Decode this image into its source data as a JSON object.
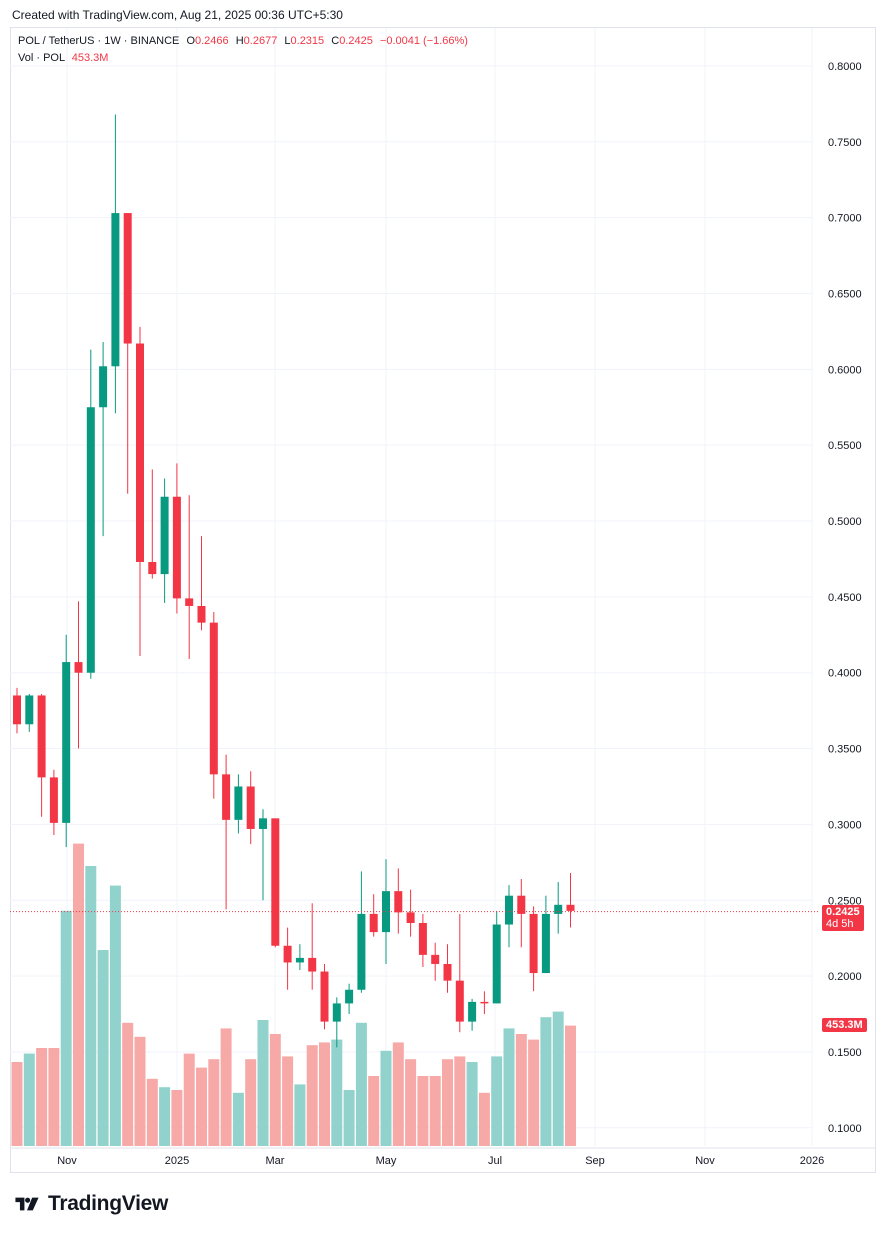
{
  "header": {
    "created": "Created with TradingView.com, Aug 21, 2025 00:36 UTC+5:30"
  },
  "legend": {
    "symbol": "POL / TetherUS · 1W · BINANCE",
    "o_label": "O",
    "o_value": "0.2466",
    "h_label": "H",
    "h_value": "0.2677",
    "l_label": "L",
    "l_value": "0.2315",
    "c_label": "C",
    "c_value": "0.2425",
    "change": "−0.0041 (−1.66%)",
    "vol_label": "Vol · POL",
    "vol_value": "453.3M"
  },
  "price_tag": {
    "price": "0.2425",
    "countdown": "4d 5h"
  },
  "volume_tag": "453.3M",
  "logo": {
    "text": "TradingView"
  },
  "colors": {
    "up": "#089981",
    "down": "#f23645",
    "up_vol": "#92d2cc",
    "down_vol": "#f7a9a7",
    "grid": "#f0f3fa"
  },
  "chart_data": {
    "type": "candlestick",
    "symbol": "POL / TetherUS",
    "interval": "1W",
    "exchange": "BINANCE",
    "y_axis": {
      "ticks": [
        "0.1000",
        "0.1500",
        "0.2000",
        "0.2500",
        "0.3000",
        "0.3500",
        "0.4000",
        "0.4500",
        "0.5000",
        "0.5500",
        "0.6000",
        "0.6500",
        "0.7000",
        "0.7500",
        "0.8000"
      ],
      "range": [
        0.088,
        0.825
      ]
    },
    "x_axis": {
      "labels": [
        "Nov",
        "2025",
        "Mar",
        "May",
        "Jul",
        "Sep",
        "Nov",
        "2026"
      ]
    },
    "last_price": 0.2425,
    "candles": [
      {
        "o": 0.385,
        "h": 0.39,
        "l": 0.36,
        "c": 0.366
      },
      {
        "o": 0.366,
        "h": 0.386,
        "l": 0.361,
        "c": 0.385
      },
      {
        "o": 0.385,
        "h": 0.386,
        "l": 0.305,
        "c": 0.331
      },
      {
        "o": 0.331,
        "h": 0.336,
        "l": 0.293,
        "c": 0.301
      },
      {
        "o": 0.301,
        "h": 0.425,
        "l": 0.285,
        "c": 0.407
      },
      {
        "o": 0.407,
        "h": 0.447,
        "l": 0.35,
        "c": 0.4
      },
      {
        "o": 0.4,
        "h": 0.613,
        "l": 0.396,
        "c": 0.575
      },
      {
        "o": 0.575,
        "h": 0.618,
        "l": 0.49,
        "c": 0.602
      },
      {
        "o": 0.602,
        "h": 0.768,
        "l": 0.571,
        "c": 0.703
      },
      {
        "o": 0.703,
        "h": 0.703,
        "l": 0.518,
        "c": 0.617
      },
      {
        "o": 0.617,
        "h": 0.628,
        "l": 0.411,
        "c": 0.473
      },
      {
        "o": 0.473,
        "h": 0.534,
        "l": 0.462,
        "c": 0.465
      },
      {
        "o": 0.465,
        "h": 0.528,
        "l": 0.446,
        "c": 0.516
      },
      {
        "o": 0.516,
        "h": 0.538,
        "l": 0.439,
        "c": 0.449
      },
      {
        "o": 0.449,
        "h": 0.517,
        "l": 0.409,
        "c": 0.444
      },
      {
        "o": 0.444,
        "h": 0.49,
        "l": 0.428,
        "c": 0.433
      },
      {
        "o": 0.433,
        "h": 0.44,
        "l": 0.317,
        "c": 0.333
      },
      {
        "o": 0.333,
        "h": 0.346,
        "l": 0.244,
        "c": 0.303
      },
      {
        "o": 0.303,
        "h": 0.333,
        "l": 0.294,
        "c": 0.325
      },
      {
        "o": 0.325,
        "h": 0.335,
        "l": 0.287,
        "c": 0.297
      },
      {
        "o": 0.297,
        "h": 0.31,
        "l": 0.25,
        "c": 0.304
      },
      {
        "o": 0.304,
        "h": 0.304,
        "l": 0.219,
        "c": 0.22
      },
      {
        "o": 0.22,
        "h": 0.232,
        "l": 0.191,
        "c": 0.209
      },
      {
        "o": 0.209,
        "h": 0.221,
        "l": 0.204,
        "c": 0.212
      },
      {
        "o": 0.212,
        "h": 0.248,
        "l": 0.191,
        "c": 0.203
      },
      {
        "o": 0.203,
        "h": 0.208,
        "l": 0.165,
        "c": 0.17
      },
      {
        "o": 0.17,
        "h": 0.186,
        "l": 0.153,
        "c": 0.182
      },
      {
        "o": 0.182,
        "h": 0.195,
        "l": 0.175,
        "c": 0.191
      },
      {
        "o": 0.191,
        "h": 0.269,
        "l": 0.189,
        "c": 0.241
      },
      {
        "o": 0.241,
        "h": 0.254,
        "l": 0.226,
        "c": 0.229
      },
      {
        "o": 0.229,
        "h": 0.277,
        "l": 0.208,
        "c": 0.256
      },
      {
        "o": 0.256,
        "h": 0.271,
        "l": 0.228,
        "c": 0.242
      },
      {
        "o": 0.242,
        "h": 0.257,
        "l": 0.226,
        "c": 0.235
      },
      {
        "o": 0.235,
        "h": 0.241,
        "l": 0.206,
        "c": 0.214
      },
      {
        "o": 0.214,
        "h": 0.222,
        "l": 0.197,
        "c": 0.208
      },
      {
        "o": 0.208,
        "h": 0.221,
        "l": 0.189,
        "c": 0.197
      },
      {
        "o": 0.197,
        "h": 0.241,
        "l": 0.163,
        "c": 0.17
      },
      {
        "o": 0.17,
        "h": 0.185,
        "l": 0.164,
        "c": 0.183
      },
      {
        "o": 0.183,
        "h": 0.19,
        "l": 0.175,
        "c": 0.182
      },
      {
        "o": 0.182,
        "h": 0.243,
        "l": 0.182,
        "c": 0.234
      },
      {
        "o": 0.234,
        "h": 0.26,
        "l": 0.219,
        "c": 0.253
      },
      {
        "o": 0.253,
        "h": 0.264,
        "l": 0.219,
        "c": 0.241
      },
      {
        "o": 0.241,
        "h": 0.246,
        "l": 0.19,
        "c": 0.202
      },
      {
        "o": 0.202,
        "h": 0.253,
        "l": 0.202,
        "c": 0.241
      },
      {
        "o": 0.241,
        "h": 0.262,
        "l": 0.228,
        "c": 0.247
      },
      {
        "o": 0.247,
        "h": 0.268,
        "l": 0.232,
        "c": 0.243
      }
    ],
    "volumes": [
      {
        "v": 0.3,
        "up": false
      },
      {
        "v": 0.33,
        "up": true
      },
      {
        "v": 0.35,
        "up": false
      },
      {
        "v": 0.35,
        "up": false
      },
      {
        "v": 0.84,
        "up": true
      },
      {
        "v": 1.08,
        "up": false
      },
      {
        "v": 1.0,
        "up": true
      },
      {
        "v": 0.7,
        "up": true
      },
      {
        "v": 0.93,
        "up": true
      },
      {
        "v": 0.44,
        "up": false
      },
      {
        "v": 0.39,
        "up": false
      },
      {
        "v": 0.24,
        "up": false
      },
      {
        "v": 0.21,
        "up": true
      },
      {
        "v": 0.2,
        "up": false
      },
      {
        "v": 0.33,
        "up": false
      },
      {
        "v": 0.28,
        "up": false
      },
      {
        "v": 0.31,
        "up": false
      },
      {
        "v": 0.42,
        "up": false
      },
      {
        "v": 0.19,
        "up": true
      },
      {
        "v": 0.31,
        "up": false
      },
      {
        "v": 0.45,
        "up": true
      },
      {
        "v": 0.4,
        "up": false
      },
      {
        "v": 0.32,
        "up": false
      },
      {
        "v": 0.22,
        "up": true
      },
      {
        "v": 0.36,
        "up": false
      },
      {
        "v": 0.37,
        "up": false
      },
      {
        "v": 0.38,
        "up": true
      },
      {
        "v": 0.2,
        "up": true
      },
      {
        "v": 0.44,
        "up": true
      },
      {
        "v": 0.25,
        "up": false
      },
      {
        "v": 0.34,
        "up": true
      },
      {
        "v": 0.37,
        "up": false
      },
      {
        "v": 0.31,
        "up": false
      },
      {
        "v": 0.25,
        "up": false
      },
      {
        "v": 0.25,
        "up": false
      },
      {
        "v": 0.31,
        "up": false
      },
      {
        "v": 0.32,
        "up": false
      },
      {
        "v": 0.3,
        "up": true
      },
      {
        "v": 0.19,
        "up": false
      },
      {
        "v": 0.32,
        "up": true
      },
      {
        "v": 0.42,
        "up": true
      },
      {
        "v": 0.4,
        "up": false
      },
      {
        "v": 0.38,
        "up": false
      },
      {
        "v": 0.46,
        "up": true
      },
      {
        "v": 0.48,
        "up": true
      },
      {
        "v": 0.43,
        "up": false
      }
    ]
  }
}
